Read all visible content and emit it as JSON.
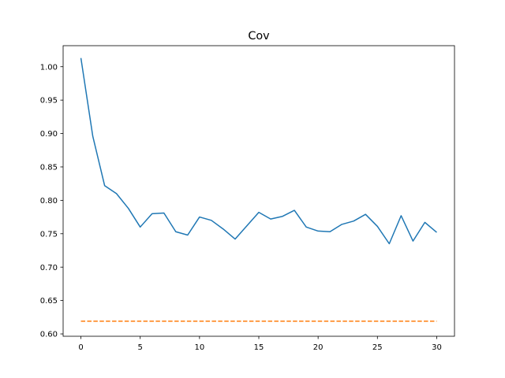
{
  "chart_data": {
    "type": "line",
    "title": "Cov",
    "xlabel": "",
    "ylabel": "",
    "xlim": [
      -1.5,
      31.5
    ],
    "ylim": [
      0.5965,
      1.0315
    ],
    "x_ticks": [
      0,
      5,
      10,
      15,
      20,
      25,
      30
    ],
    "x_tick_labels": [
      "0",
      "5",
      "10",
      "15",
      "20",
      "25",
      "30"
    ],
    "y_ticks": [
      0.6,
      0.65,
      0.7,
      0.75,
      0.8,
      0.85,
      0.9,
      0.95,
      1.0
    ],
    "y_tick_labels": [
      "0.60",
      "0.65",
      "0.70",
      "0.75",
      "0.80",
      "0.85",
      "0.90",
      "0.95",
      "1.00"
    ],
    "grid": false,
    "series": [
      {
        "color": "#1f77b4",
        "linestyle": "solid",
        "x": [
          0,
          1,
          2,
          3,
          4,
          5,
          6,
          7,
          8,
          9,
          10,
          11,
          12,
          13,
          14,
          15,
          16,
          17,
          18,
          19,
          20,
          21,
          22,
          23,
          24,
          25,
          26,
          27,
          28,
          29,
          30
        ],
        "y": [
          1.013,
          0.896,
          0.822,
          0.81,
          0.788,
          0.76,
          0.78,
          0.781,
          0.753,
          0.748,
          0.775,
          0.77,
          0.757,
          0.742,
          0.762,
          0.782,
          0.772,
          0.776,
          0.785,
          0.76,
          0.754,
          0.753,
          0.764,
          0.769,
          0.779,
          0.761,
          0.735,
          0.777,
          0.739,
          0.767,
          0.752
        ]
      },
      {
        "color": "#ff7f0e",
        "linestyle": "dashed",
        "x": [
          0,
          30
        ],
        "y": [
          0.619,
          0.619
        ]
      }
    ]
  }
}
